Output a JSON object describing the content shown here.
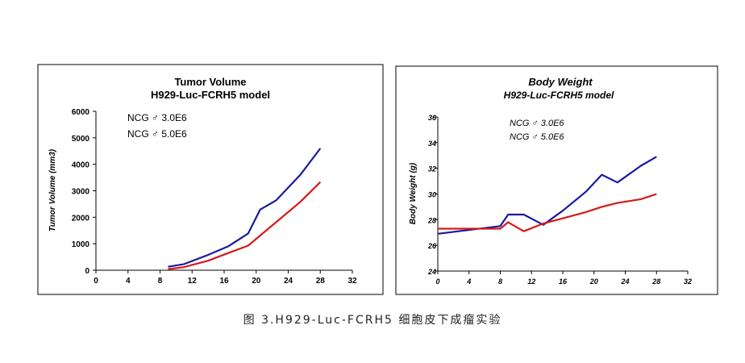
{
  "caption": "图 3.H929-Luc-FCRH5 细胞皮下成瘤实验",
  "chart_data": [
    {
      "type": "line",
      "title": "Tumor Volume",
      "subtitle": "H929-Luc-FCRH5 model",
      "xlabel": "",
      "ylabel": "Tumor Volume (mm3)",
      "xlim": [
        0,
        32
      ],
      "ylim": [
        0,
        6000
      ],
      "xticks": [
        "0",
        "4",
        "8",
        "12",
        "16",
        "20",
        "24",
        "28",
        "32"
      ],
      "yticks": [
        "0",
        "1000",
        "2000",
        "3000",
        "4000",
        "5000",
        "6000"
      ],
      "legend_position": "top-left",
      "series": [
        {
          "name": "NCG ♂ 3.0E6",
          "color": "#1a1aa0",
          "x": [
            9,
            11,
            14,
            16.5,
            19,
            20.5,
            22.5,
            25.5,
            28
          ],
          "y": [
            130,
            230,
            580,
            900,
            1390,
            2290,
            2640,
            3600,
            4600
          ]
        },
        {
          "name": "NCG ♂ 5.0E6",
          "color": "#d41a1a",
          "x": [
            9,
            11,
            14,
            16.5,
            19,
            25.5,
            28
          ],
          "y": [
            40,
            120,
            360,
            650,
            930,
            2580,
            3330
          ]
        }
      ]
    },
    {
      "type": "line",
      "title": "Body Weight",
      "subtitle": "H929-Luc-FCRH5 model",
      "xlabel": "",
      "ylabel": "Body Weight (g)",
      "xlim": [
        0,
        32
      ],
      "ylim": [
        24,
        36
      ],
      "xticks": [
        "0",
        "4",
        "8",
        "12",
        "16",
        "20",
        "24",
        "28",
        "32"
      ],
      "yticks": [
        "24",
        "26",
        "28",
        "30",
        "32",
        "34",
        "36"
      ],
      "legend_position": "top-center",
      "series": [
        {
          "name": "NCG ♂ 3.0E6",
          "color": "#1a1aa0",
          "x": [
            0,
            8,
            9,
            11,
            13.5,
            16,
            19,
            21,
            23,
            26,
            28
          ],
          "y": [
            26.9,
            27.5,
            28.4,
            28.4,
            27.6,
            28.7,
            30.2,
            31.5,
            30.9,
            32.2,
            32.9
          ]
        },
        {
          "name": "NCG ♂ 5.0E6",
          "color": "#d41a1a",
          "x": [
            0,
            8,
            9,
            11,
            13.5,
            16,
            19,
            21,
            23,
            26,
            28
          ],
          "y": [
            27.3,
            27.3,
            27.8,
            27.1,
            27.7,
            28.1,
            28.6,
            29.0,
            29.3,
            29.6,
            30.0
          ]
        }
      ]
    }
  ]
}
